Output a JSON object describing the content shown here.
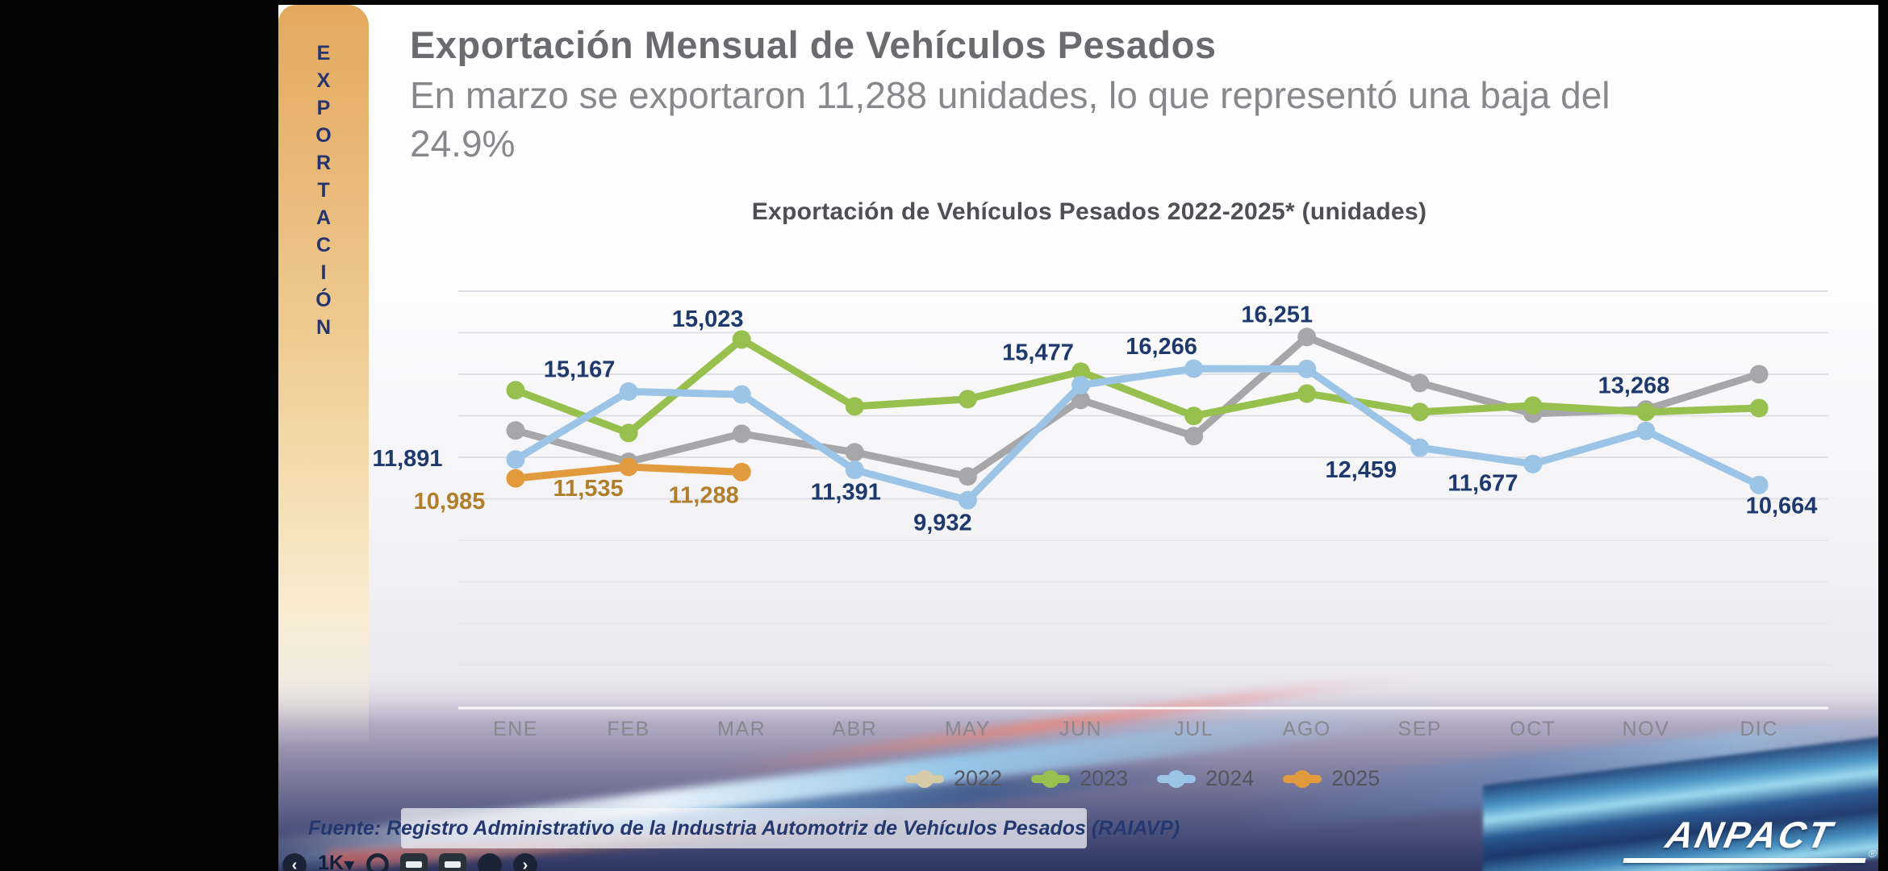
{
  "sidebar": {
    "vertical_label": "EXPORTACIÓN"
  },
  "header": {
    "title": "Exportación Mensual de Vehículos Pesados",
    "subtitle_line1": "En marzo se exportaron 11,288 unidades, lo que representó una baja del",
    "subtitle_line2": "24.9%"
  },
  "chart_data": {
    "type": "line",
    "title": "Exportación de Vehículos Pesados 2022-2025* (unidades)",
    "categories": [
      "ENE",
      "FEB",
      "MAR",
      "ABR",
      "MAY",
      "JUN",
      "JUL",
      "AGO",
      "SEP",
      "OCT",
      "NOV",
      "DIC"
    ],
    "ylim": [
      0,
      20000
    ],
    "grid_step": 2000,
    "grid": true,
    "legend_position": "bottom",
    "series": [
      {
        "name": "2022",
        "color": "#a7a7a9",
        "legend_color": "#d5cba6",
        "values": [
          13290,
          11780,
          13130,
          12240,
          11080,
          14760,
          13020,
          17790,
          15580,
          14100,
          14300,
          16000
        ],
        "labels": {}
      },
      {
        "name": "2023",
        "color": "#97c04e",
        "legend_color": "#97c04e",
        "values": [
          15230,
          13170,
          17670,
          14450,
          14800,
          16120,
          13990,
          15070,
          14180,
          14490,
          14180,
          14370
        ],
        "labels": {}
      },
      {
        "name": "2024",
        "color": "#9cc4e6",
        "legend_color": "#9cc4e6",
        "label_color": "#1e3a6d",
        "values": [
          11891,
          15167,
          15023,
          11391,
          9932,
          15477,
          16266,
          16251,
          12459,
          11677,
          13268,
          10664
        ],
        "labels": {
          "0": "11,891",
          "1": "15,167",
          "2": "15,023",
          "3": "11,391",
          "4": "9,932",
          "5": "15,477",
          "6": "16,266",
          "7": "16,251",
          "8": "12,459",
          "9": "11,677",
          "10": "13,268",
          "11": "10,664"
        }
      },
      {
        "name": "2025",
        "color": "#e19b3c",
        "legend_color": "#e19b3c",
        "label_color": "#b17e2b",
        "values": [
          10985,
          11535,
          11288
        ],
        "labels": {
          "0": "10,985",
          "1": "11,535",
          "2": "11,288"
        }
      }
    ]
  },
  "footer": {
    "source": "Fuente: Registro Administrativo de la Industria Automotriz de Vehículos Pesados (RAIAVP)",
    "brand": "ANPACT",
    "like_count": "1K"
  },
  "colors": {
    "navy": "#1e3a6d",
    "label_orange": "#b17e2b",
    "ribbon": "#e3a95e",
    "axis_text": "#87888e"
  }
}
